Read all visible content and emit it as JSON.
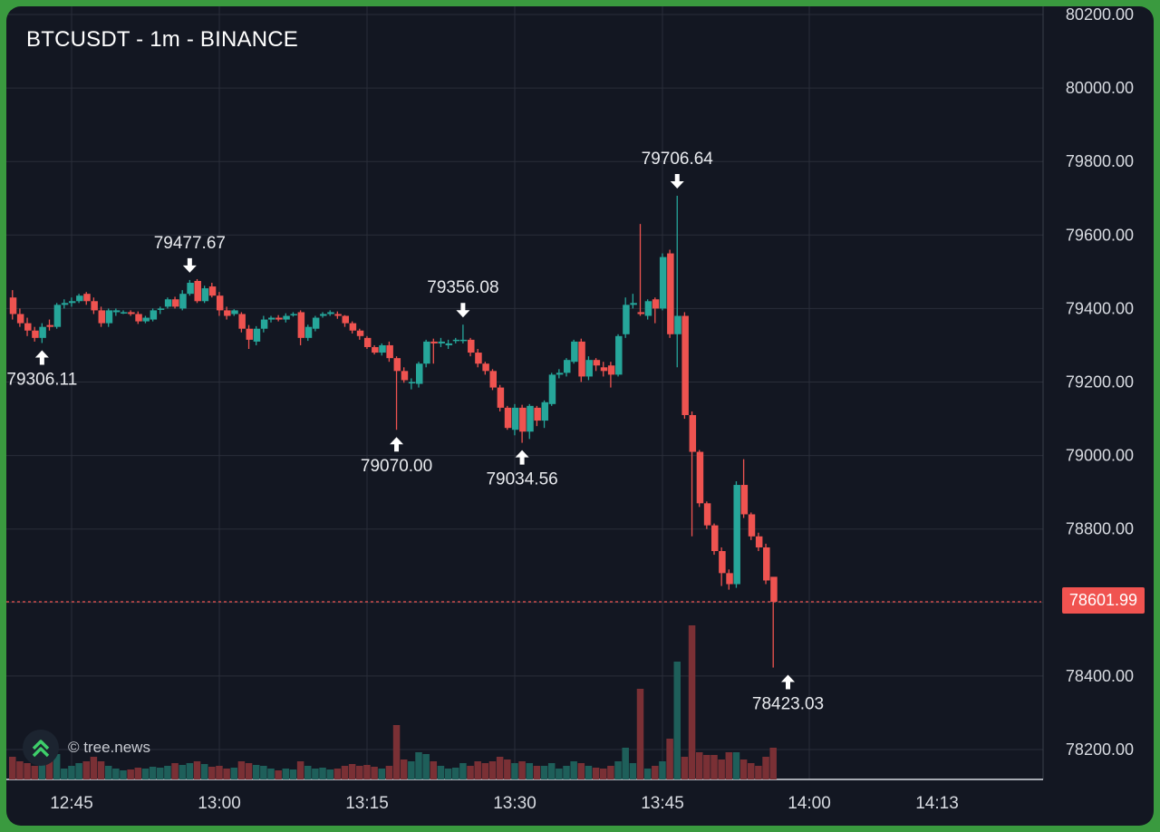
{
  "title": "BTCUSDT - 1m - BINANCE",
  "watermark": "© tree.news",
  "colors": {
    "up": "#26a69a",
    "down": "#ef5350",
    "background": "#131722",
    "grid": "#2a2e39",
    "frame": "#3a9a3f"
  },
  "last_price_label": "78601.99",
  "chart_data": {
    "type": "candlestick",
    "title": "BTCUSDT - 1m - BINANCE",
    "xlabel": "",
    "ylabel": "",
    "ylim": [
      78100,
      80200
    ],
    "y_ticks": [
      "80200.00",
      "80000.00",
      "79800.00",
      "79600.00",
      "79400.00",
      "79200.00",
      "79000.00",
      "78800.00",
      "78600.00",
      "78400.00",
      "78200.00"
    ],
    "x_ticks": [
      "12:45",
      "13:00",
      "13:15",
      "13:30",
      "13:45",
      "14:00",
      "14:13"
    ],
    "grid": true,
    "last_price": 78601.99,
    "annotations": [
      {
        "text": "79306.11",
        "time": "12:43",
        "price": 79306.11,
        "type": "low"
      },
      {
        "text": "79477.67",
        "time": "13:03",
        "price": 79477.67,
        "type": "high"
      },
      {
        "text": "79070.00",
        "time": "13:27",
        "price": 79070.0,
        "type": "low"
      },
      {
        "text": "79356.08",
        "time": "13:35",
        "price": 79356.08,
        "type": "high"
      },
      {
        "text": "79034.56",
        "time": "13:42",
        "price": 79034.56,
        "type": "low"
      },
      {
        "text": "79706.64",
        "time": "14:00",
        "price": 79706.64,
        "type": "high"
      },
      {
        "text": "78423.03",
        "time": "14:13",
        "price": 78423.03,
        "type": "low"
      }
    ],
    "candles": [
      [
        79430,
        79385,
        79450,
        79370,
        25
      ],
      [
        79385,
        79360,
        79400,
        79350,
        20
      ],
      [
        79360,
        79340,
        79375,
        79325,
        18
      ],
      [
        79340,
        79320,
        79350,
        79310,
        15
      ],
      [
        79320,
        79350,
        79360,
        79306.11,
        30
      ],
      [
        79355,
        79350,
        79370,
        79340,
        22
      ],
      [
        79350,
        79410,
        79415,
        79345,
        28
      ],
      [
        79410,
        79415,
        79425,
        79400,
        12
      ],
      [
        79415,
        79420,
        79430,
        79405,
        15
      ],
      [
        79420,
        79435,
        79440,
        79415,
        18
      ],
      [
        79440,
        79420,
        79445,
        79410,
        20
      ],
      [
        79420,
        79395,
        79430,
        79385,
        25
      ],
      [
        79395,
        79360,
        79405,
        79350,
        20
      ],
      [
        79360,
        79395,
        79400,
        79350,
        15
      ],
      [
        79390,
        79395,
        79400,
        79380,
        12
      ],
      [
        79390,
        79390,
        79395,
        79385,
        10
      ],
      [
        79390,
        79385,
        79395,
        79380,
        11
      ],
      [
        79385,
        79365,
        79392,
        79358,
        13
      ],
      [
        79365,
        79375,
        79380,
        79360,
        12
      ],
      [
        79370,
        79395,
        79400,
        79365,
        14
      ],
      [
        79400,
        79400,
        79405,
        79385,
        13
      ],
      [
        79405,
        79425,
        79430,
        79400,
        15
      ],
      [
        79425,
        79405,
        79432,
        79400,
        18
      ],
      [
        79400,
        79440,
        79450,
        79395,
        16
      ],
      [
        79440,
        79470,
        79477.67,
        79435,
        18
      ],
      [
        79475,
        79420,
        79480,
        79415,
        20
      ],
      [
        79420,
        79455,
        79462,
        79415,
        17
      ],
      [
        79460,
        79435,
        79470,
        79430,
        14
      ],
      [
        79435,
        79395,
        79445,
        79380,
        15
      ],
      [
        79395,
        79380,
        79405,
        79370,
        12
      ],
      [
        79385,
        79395,
        79398,
        79380,
        13
      ],
      [
        79385,
        79345,
        79390,
        79335,
        20
      ],
      [
        79345,
        79315,
        79355,
        79290,
        18
      ],
      [
        79310,
        79345,
        79352,
        79300,
        16
      ],
      [
        79345,
        79370,
        79380,
        79335,
        15
      ],
      [
        79370,
        79375,
        79380,
        79362,
        12
      ],
      [
        79375,
        79370,
        79382,
        79365,
        10
      ],
      [
        79370,
        79380,
        79387,
        79362,
        12
      ],
      [
        79385,
        79385,
        79390,
        79378,
        11
      ],
      [
        79390,
        79320,
        79395,
        79300,
        20
      ],
      [
        79320,
        79350,
        79356,
        79312,
        15
      ],
      [
        79345,
        79375,
        79380,
        79338,
        12
      ],
      [
        79380,
        79385,
        79390,
        79375,
        13
      ],
      [
        79385,
        79390,
        79395,
        79380,
        11
      ],
      [
        79385,
        79380,
        79392,
        79372,
        12
      ],
      [
        79380,
        79360,
        79382,
        79350,
        15
      ],
      [
        79360,
        79340,
        79365,
        79332,
        17
      ],
      [
        79340,
        79325,
        79345,
        79315,
        15
      ],
      [
        79320,
        79295,
        79325,
        79290,
        16
      ],
      [
        79295,
        79280,
        79300,
        79275,
        14
      ],
      [
        79280,
        79300,
        79305,
        79272,
        12
      ],
      [
        79300,
        79265,
        79310,
        79255,
        15
      ],
      [
        79265,
        79230,
        79270,
        79070.0,
        60
      ],
      [
        79230,
        79205,
        79240,
        79198,
        22
      ],
      [
        79200,
        79200,
        79210,
        79180,
        20
      ],
      [
        79195,
        79250,
        79255,
        79185,
        30
      ],
      [
        79250,
        79310,
        79315,
        79240,
        28
      ],
      [
        79310,
        79305,
        79318,
        79250,
        20
      ],
      [
        79305,
        79310,
        79320,
        79295,
        15
      ],
      [
        79300,
        79305,
        79315,
        79290,
        12
      ],
      [
        79315,
        79315,
        79320,
        79305,
        13
      ],
      [
        79312,
        79315,
        79356.08,
        79305,
        18
      ],
      [
        79315,
        79280,
        79320,
        79270,
        15
      ],
      [
        79280,
        79250,
        79290,
        79240,
        20
      ],
      [
        79250,
        79230,
        79255,
        79220,
        18
      ],
      [
        79230,
        79185,
        79235,
        79178,
        20
      ],
      [
        79185,
        79130,
        79192,
        79120,
        25
      ],
      [
        79130,
        79075,
        79135,
        79070,
        22
      ],
      [
        79070,
        79130,
        79140,
        79055,
        18
      ],
      [
        79130,
        79065,
        79138,
        79034.56,
        20
      ],
      [
        79065,
        79135,
        79140,
        79045,
        18
      ],
      [
        79130,
        79095,
        79135,
        79080,
        15
      ],
      [
        79095,
        79145,
        79150,
        79075,
        15
      ],
      [
        79140,
        79220,
        79225,
        79135,
        18
      ],
      [
        79220,
        79225,
        79235,
        79210,
        12
      ],
      [
        79225,
        79260,
        79265,
        79215,
        15
      ],
      [
        79255,
        79310,
        79315,
        79250,
        20
      ],
      [
        79310,
        79215,
        79318,
        79200,
        18
      ],
      [
        79215,
        79260,
        79270,
        79205,
        15
      ],
      [
        79260,
        79245,
        79265,
        79230,
        13
      ],
      [
        79240,
        79230,
        79255,
        79215,
        12
      ],
      [
        79245,
        79220,
        79255,
        79185,
        15
      ],
      [
        79220,
        79325,
        79330,
        79215,
        20
      ],
      [
        79330,
        79410,
        79430,
        79320,
        35
      ],
      [
        79410,
        79415,
        79440,
        79400,
        18
      ],
      [
        79390,
        79385,
        79630,
        79380,
        100
      ],
      [
        79380,
        79420,
        79425,
        79370,
        12
      ],
      [
        79425,
        79400,
        79430,
        79360,
        15
      ],
      [
        79400,
        79540,
        79550,
        79395,
        20
      ],
      [
        79550,
        79330,
        79560,
        79320,
        45
      ],
      [
        79330,
        79380,
        79706.64,
        79240,
        130
      ],
      [
        79380,
        79110,
        79390,
        79100,
        25
      ],
      [
        79110,
        79010,
        79120,
        78780,
        170
      ],
      [
        79010,
        78870,
        79015,
        78860,
        30
      ],
      [
        78870,
        78810,
        78875,
        78800,
        27
      ],
      [
        78810,
        78740,
        78815,
        78730,
        27
      ],
      [
        78740,
        78680,
        78750,
        78645,
        22
      ],
      [
        78680,
        78650,
        78690,
        78635,
        30
      ],
      [
        78650,
        78920,
        78930,
        78640,
        30
      ],
      [
        78920,
        78840,
        78990,
        78830,
        22
      ],
      [
        78840,
        78780,
        78845,
        78770,
        18
      ],
      [
        78780,
        78750,
        78790,
        78740,
        15
      ],
      [
        78750,
        78660,
        78760,
        78650,
        25
      ],
      [
        78670,
        78601.99,
        78665,
        78423.03,
        35
      ]
    ]
  }
}
